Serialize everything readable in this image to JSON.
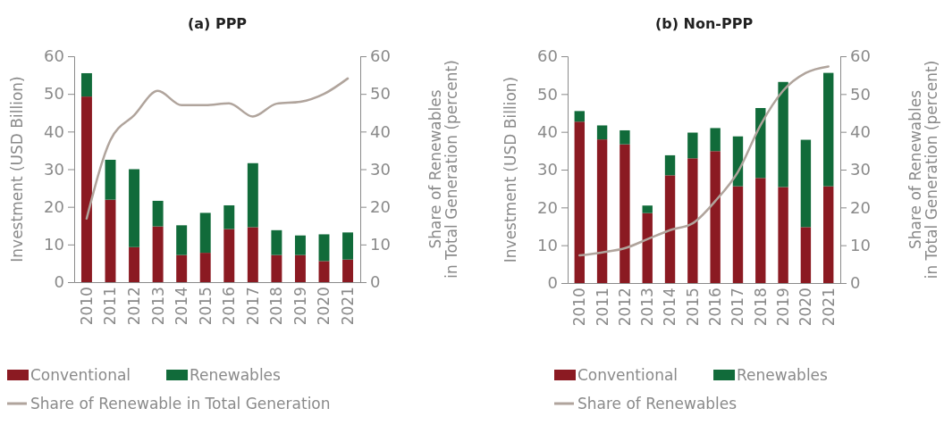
{
  "chart_data": [
    {
      "type": "bar",
      "title": "(a) PPP",
      "ylabel": "Investment (USD Billion)",
      "y2label": "Share of Renewables\nin Total Generation (percent)",
      "stacked": true,
      "legend": "bottom left",
      "marker": "none",
      "line_style": "solid",
      "categories": [
        "2010",
        "2011",
        "2012",
        "2013",
        "2014",
        "2015",
        "2016",
        "2017",
        "2018",
        "2019",
        "2020",
        "2021"
      ],
      "ylim": [
        0,
        60
      ],
      "yticks": [
        0,
        10,
        20,
        30,
        40,
        50,
        60
      ],
      "y2lim": [
        0,
        60
      ],
      "y2ticks": [
        0,
        10,
        20,
        30,
        40,
        50,
        60
      ],
      "series": [
        {
          "name": "Conventional",
          "type": "bar",
          "color": "#8b1a22",
          "values": [
            49.3,
            21.9,
            9.3,
            14.8,
            7.2,
            7.8,
            14.1,
            14.6,
            7.2,
            7.2,
            5.6,
            6.0
          ]
        },
        {
          "name": "Renewables",
          "type": "bar",
          "color": "#116b3a",
          "values": [
            6.2,
            10.6,
            20.7,
            6.8,
            7.9,
            10.6,
            6.3,
            17.0,
            6.6,
            5.2,
            7.1,
            7.2
          ]
        },
        {
          "name": "Share of Renewable in Total Generation",
          "type": "line",
          "axis": "y2",
          "color": "#b0a49c",
          "values": [
            16.9,
            37.7,
            44.3,
            50.8,
            47.0,
            47.0,
            47.5,
            44.0,
            47.4,
            47.9,
            50.0,
            54.1
          ]
        }
      ]
    },
    {
      "type": "bar",
      "title": "(b) Non-PPP",
      "ylabel": "Investment (USD Billion)",
      "y2label": "Share of Renewables\nin Total Generation (percent)",
      "stacked": true,
      "legend": "bottom left",
      "marker": "none",
      "line_style": "solid",
      "categories": [
        "2010",
        "2011",
        "2012",
        "2013",
        "2014",
        "2015",
        "2016",
        "2017",
        "2018",
        "2019",
        "2020",
        "2021"
      ],
      "ylim": [
        0,
        60
      ],
      "yticks": [
        0,
        10,
        20,
        30,
        40,
        50,
        60
      ],
      "y2lim": [
        0,
        60
      ],
      "y2ticks": [
        0,
        10,
        20,
        30,
        40,
        50,
        60
      ],
      "series": [
        {
          "name": "Conventional",
          "type": "bar",
          "color": "#8b1a22",
          "values": [
            42.7,
            38.0,
            36.7,
            18.5,
            28.5,
            33.0,
            34.9,
            25.6,
            27.8,
            25.4,
            14.8,
            25.6
          ]
        },
        {
          "name": "Renewables",
          "type": "bar",
          "color": "#116b3a",
          "values": [
            2.8,
            3.7,
            3.7,
            2.0,
            5.3,
            6.8,
            6.1,
            13.2,
            18.5,
            27.8,
            23.1,
            30.0
          ]
        },
        {
          "name": "Share of Renewables",
          "type": "line",
          "axis": "y2",
          "color": "#b0a49c",
          "values": [
            7.3,
            8.1,
            9.2,
            11.6,
            14.0,
            15.8,
            21.7,
            29.4,
            41.8,
            50.9,
            55.6,
            57.3
          ]
        }
      ]
    }
  ]
}
